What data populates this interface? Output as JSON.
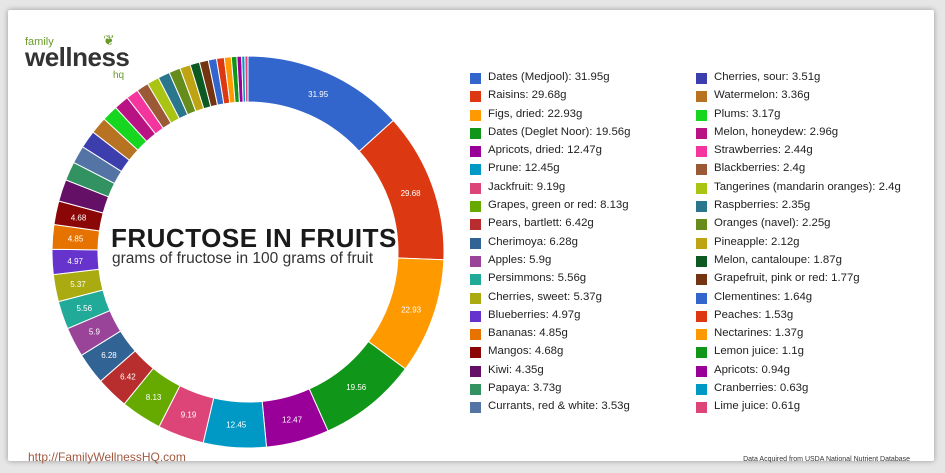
{
  "logo": {
    "family": "family",
    "wellness": "wellness",
    "hq": "hq"
  },
  "title": "FRUCTOSE IN FRUITS",
  "subtitle": "grams of fructose in 100 grams of fruit",
  "footer": {
    "url": "http://FamilyWellnessHQ.com",
    "source": "Data Acquired from USDA National Nutrient Database"
  },
  "chart_data": {
    "type": "pie",
    "donut": true,
    "title": "FRUCTOSE IN FRUITS",
    "subtitle": "grams of fructose in 100 grams of fruit",
    "legend_position": "right",
    "unit": "g",
    "slices": [
      {
        "label": "Dates (Medjool)",
        "value": 31.95,
        "color": "#3366cc"
      },
      {
        "label": "Raisins",
        "value": 29.68,
        "color": "#dc3912"
      },
      {
        "label": "Figs, dried",
        "value": 22.93,
        "color": "#ff9900"
      },
      {
        "label": "Dates (Deglet Noor)",
        "value": 19.56,
        "color": "#109618"
      },
      {
        "label": "Apricots, dried",
        "value": 12.47,
        "color": "#990099"
      },
      {
        "label": "Prune",
        "value": 12.45,
        "color": "#0099c6"
      },
      {
        "label": "Jackfruit",
        "value": 9.19,
        "color": "#dd4477"
      },
      {
        "label": "Grapes, green or red",
        "value": 8.13,
        "color": "#66aa00"
      },
      {
        "label": "Pears, bartlett",
        "value": 6.42,
        "color": "#b82e2e"
      },
      {
        "label": "Cherimoya",
        "value": 6.28,
        "color": "#316395"
      },
      {
        "label": "Apples",
        "value": 5.9,
        "color": "#994499"
      },
      {
        "label": "Persimmons",
        "value": 5.56,
        "color": "#22aa99"
      },
      {
        "label": "Cherries, sweet",
        "value": 5.37,
        "color": "#aaaa11"
      },
      {
        "label": "Blueberries",
        "value": 4.97,
        "color": "#6633cc"
      },
      {
        "label": "Bananas",
        "value": 4.85,
        "color": "#e67300"
      },
      {
        "label": "Mangos",
        "value": 4.68,
        "color": "#8b0707"
      },
      {
        "label": "Kiwi",
        "value": 4.35,
        "color": "#651067"
      },
      {
        "label": "Papaya",
        "value": 3.73,
        "color": "#329262"
      },
      {
        "label": "Currants, red & white",
        "value": 3.53,
        "color": "#5574a6"
      },
      {
        "label": "Cherries, sour",
        "value": 3.51,
        "color": "#3b3eac"
      },
      {
        "label": "Watermelon",
        "value": 3.36,
        "color": "#b77322"
      },
      {
        "label": "Plums",
        "value": 3.17,
        "color": "#16d620"
      },
      {
        "label": "Melon, honeydew",
        "value": 2.96,
        "color": "#b91383"
      },
      {
        "label": "Strawberries",
        "value": 2.44,
        "color": "#f4359e"
      },
      {
        "label": "Blackberries",
        "value": 2.4,
        "color": "#9c5935"
      },
      {
        "label": "Tangerines (mandarin oranges)",
        "value": 2.4,
        "color": "#a9c413"
      },
      {
        "label": "Raspberries",
        "value": 2.35,
        "color": "#2a778d"
      },
      {
        "label": "Oranges (navel)",
        "value": 2.25,
        "color": "#668d1c"
      },
      {
        "label": "Pineapple",
        "value": 2.12,
        "color": "#bea413"
      },
      {
        "label": "Melon, cantaloupe",
        "value": 1.87,
        "color": "#0c5922"
      },
      {
        "label": "Grapefruit, pink or red",
        "value": 1.77,
        "color": "#743411"
      },
      {
        "label": "Clementines",
        "value": 1.64,
        "color": "#3366cc"
      },
      {
        "label": "Peaches",
        "value": 1.53,
        "color": "#dc3912"
      },
      {
        "label": "Nectarines",
        "value": 1.37,
        "color": "#ff9900"
      },
      {
        "label": "Lemon juice",
        "value": 1.1,
        "color": "#109618"
      },
      {
        "label": "Apricots",
        "value": 0.94,
        "color": "#990099"
      },
      {
        "label": "Cranberries",
        "value": 0.63,
        "color": "#0099c6"
      },
      {
        "label": "Lime juice",
        "value": 0.61,
        "color": "#dd4477"
      }
    ]
  }
}
